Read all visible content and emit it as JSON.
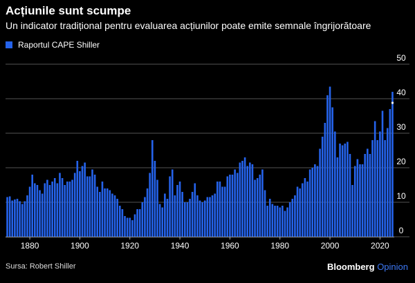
{
  "header": {
    "title": "Acțiunile sunt scumpe",
    "subtitle": "Un indicator tradițional pentru evaluarea acțiunilor poate emite semnale îngrijorătoare"
  },
  "footer": {
    "source": "Sursa: Robert Shiller",
    "brand_main": "Bloomberg",
    "brand_secondary": "Opinion"
  },
  "colors": {
    "bar": "#2563eb",
    "background": "#000000",
    "grid": "#555555"
  },
  "chart_data": {
    "type": "bar",
    "legend": [
      "Raportul CAPE Shiller"
    ],
    "legend_position": "top-left",
    "xlim": [
      1871,
      2025
    ],
    "xticks": [
      1880,
      1900,
      1920,
      1940,
      1960,
      1980,
      2000,
      2020
    ],
    "ylim": [
      0,
      50
    ],
    "yticks": [
      0,
      10,
      20,
      30,
      40,
      50
    ],
    "y_axis_side": "right",
    "grid": true,
    "series": [
      {
        "name": "Raportul CAPE Shiller",
        "x": [
          1871,
          1872,
          1873,
          1874,
          1875,
          1876,
          1877,
          1878,
          1879,
          1880,
          1881,
          1882,
          1883,
          1884,
          1885,
          1886,
          1887,
          1888,
          1889,
          1890,
          1891,
          1892,
          1893,
          1894,
          1895,
          1896,
          1897,
          1898,
          1899,
          1900,
          1901,
          1902,
          1903,
          1904,
          1905,
          1906,
          1907,
          1908,
          1909,
          1910,
          1911,
          1912,
          1913,
          1914,
          1915,
          1916,
          1917,
          1918,
          1919,
          1920,
          1921,
          1922,
          1923,
          1924,
          1925,
          1926,
          1927,
          1928,
          1929,
          1930,
          1931,
          1932,
          1933,
          1934,
          1935,
          1936,
          1937,
          1938,
          1939,
          1940,
          1941,
          1942,
          1943,
          1944,
          1945,
          1946,
          1947,
          1948,
          1949,
          1950,
          1951,
          1952,
          1953,
          1954,
          1955,
          1956,
          1957,
          1958,
          1959,
          1960,
          1961,
          1962,
          1963,
          1964,
          1965,
          1966,
          1967,
          1968,
          1969,
          1970,
          1971,
          1972,
          1973,
          1974,
          1975,
          1976,
          1977,
          1978,
          1979,
          1980,
          1981,
          1982,
          1983,
          1984,
          1985,
          1986,
          1987,
          1988,
          1989,
          1990,
          1991,
          1992,
          1993,
          1994,
          1995,
          1996,
          1997,
          1998,
          1999,
          2000,
          2001,
          2002,
          2003,
          2004,
          2005,
          2006,
          2007,
          2008,
          2009,
          2010,
          2011,
          2012,
          2013,
          2014,
          2015,
          2016,
          2017,
          2018,
          2019,
          2020,
          2021,
          2022,
          2023,
          2024,
          2025
        ],
        "values": [
          11.5,
          11.7,
          10.5,
          10.8,
          11.0,
          10.3,
          9.5,
          10.3,
          12.0,
          14.5,
          18.0,
          15.5,
          15.0,
          13.5,
          12.5,
          15.5,
          16.5,
          15.0,
          16.0,
          17.0,
          15.5,
          18.5,
          17.0,
          15.0,
          16.0,
          16.0,
          16.5,
          18.5,
          22.0,
          19.0,
          20.5,
          21.5,
          17.5,
          17.5,
          19.5,
          18.0,
          14.5,
          13.0,
          16.0,
          14.0,
          14.0,
          13.5,
          12.5,
          12.0,
          11.0,
          9.0,
          8.0,
          6.0,
          5.5,
          5.5,
          4.8,
          6.5,
          8.0,
          8.0,
          10.0,
          11.5,
          14.0,
          18.5,
          28.0,
          22.0,
          16.5,
          9.5,
          8.5,
          12.5,
          11.0,
          17.5,
          19.5,
          12.0,
          15.0,
          16.0,
          13.0,
          10.0,
          10.0,
          11.0,
          13.0,
          15.5,
          12.0,
          10.5,
          10.0,
          10.5,
          11.5,
          11.5,
          12.0,
          12.5,
          16.0,
          16.0,
          14.5,
          14.5,
          17.5,
          18.0,
          18.0,
          19.5,
          18.5,
          21.5,
          22.0,
          23.0,
          20.5,
          21.5,
          21.0,
          16.5,
          17.0,
          18.0,
          19.5,
          13.5,
          9.0,
          11.0,
          9.5,
          9.0,
          9.0,
          8.5,
          9.0,
          7.5,
          8.5,
          10.0,
          11.0,
          12.0,
          14.5,
          14.0,
          15.5,
          17.0,
          16.0,
          19.5,
          20.0,
          21.0,
          20.5,
          25.5,
          29.0,
          33.0,
          41.0,
          43.5,
          37.5,
          30.5,
          23.0,
          27.0,
          26.5,
          27.0,
          27.5,
          24.0,
          15.0,
          20.5,
          22.5,
          21.0,
          21.0,
          24.0,
          25.5,
          24.0,
          28.0,
          33.5,
          28.0,
          30.5,
          36.5,
          28.0,
          31.5,
          37.0,
          42.0
        ]
      }
    ]
  }
}
